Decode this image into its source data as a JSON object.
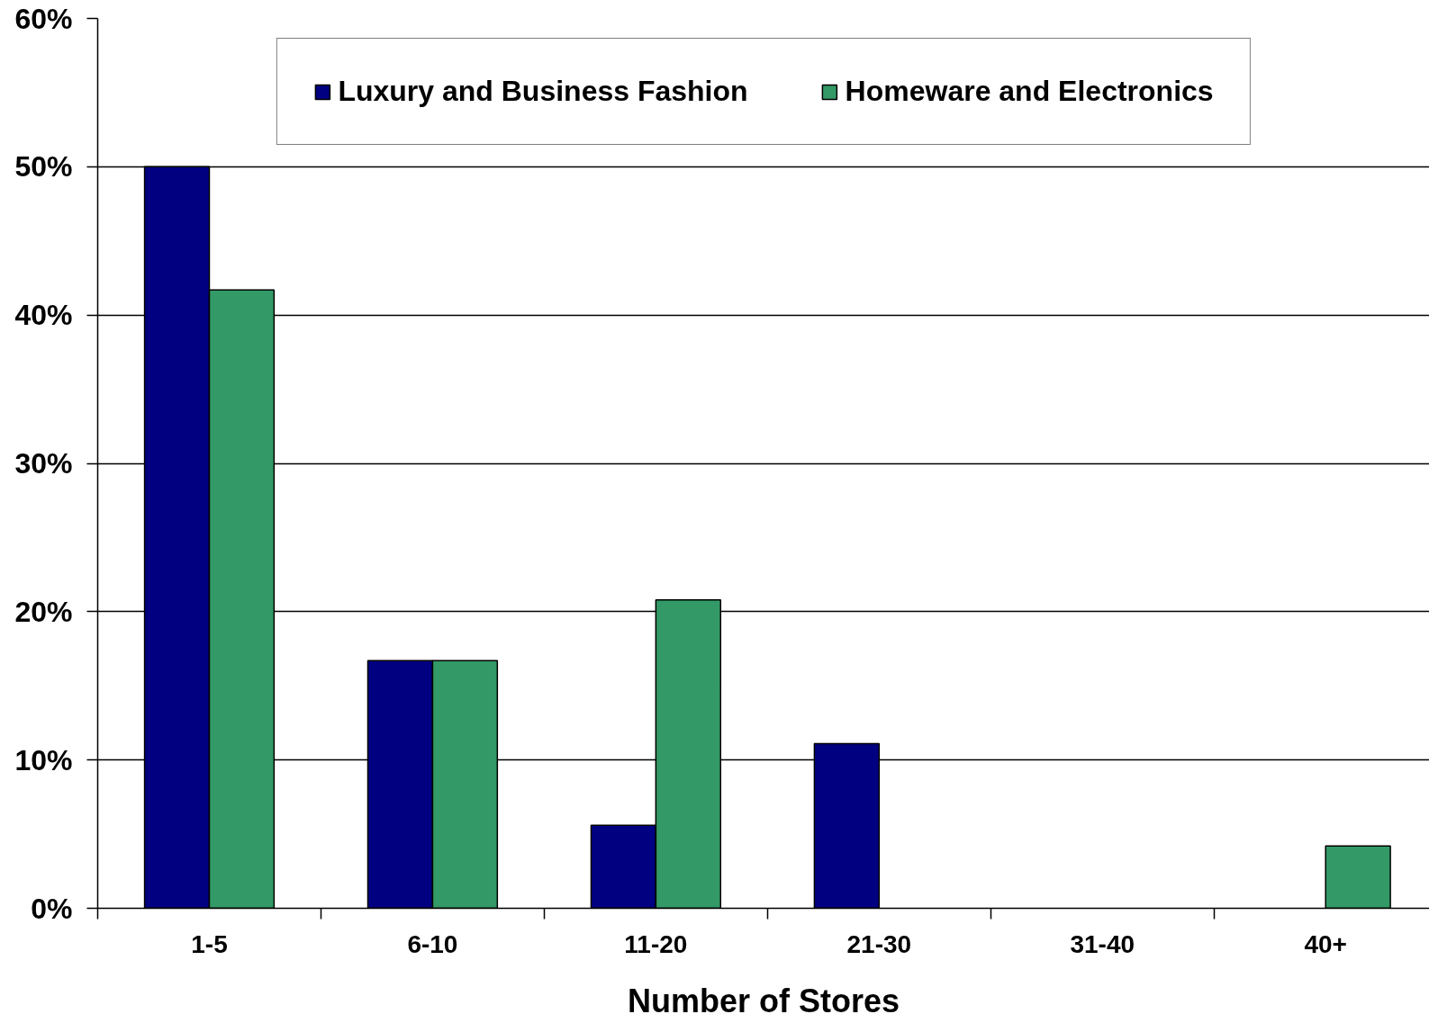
{
  "chart_data": {
    "type": "bar",
    "xlabel": "Number of Stores",
    "categories": [
      "1-5",
      "6-10",
      "11-20",
      "21-30",
      "31-40",
      "40+"
    ],
    "series": [
      {
        "name": "Luxury and Business Fashion",
        "color": "#000080",
        "values": [
          50,
          16.7,
          5.6,
          11.1,
          0,
          0
        ]
      },
      {
        "name": "Homeware and Electronics",
        "color": "#339966",
        "values": [
          41.7,
          16.7,
          20.8,
          0,
          0,
          4.2
        ]
      }
    ],
    "ylim": [
      0,
      60
    ],
    "yticks": [
      {
        "value": 0,
        "label": "0%"
      },
      {
        "value": 10,
        "label": "10%"
      },
      {
        "value": 20,
        "label": "20%"
      },
      {
        "value": 30,
        "label": "30%"
      },
      {
        "value": 40,
        "label": "40%"
      },
      {
        "value": 50,
        "label": "50%"
      },
      {
        "value": 60,
        "label": "60%"
      }
    ],
    "grid": "y",
    "legend": "top"
  }
}
